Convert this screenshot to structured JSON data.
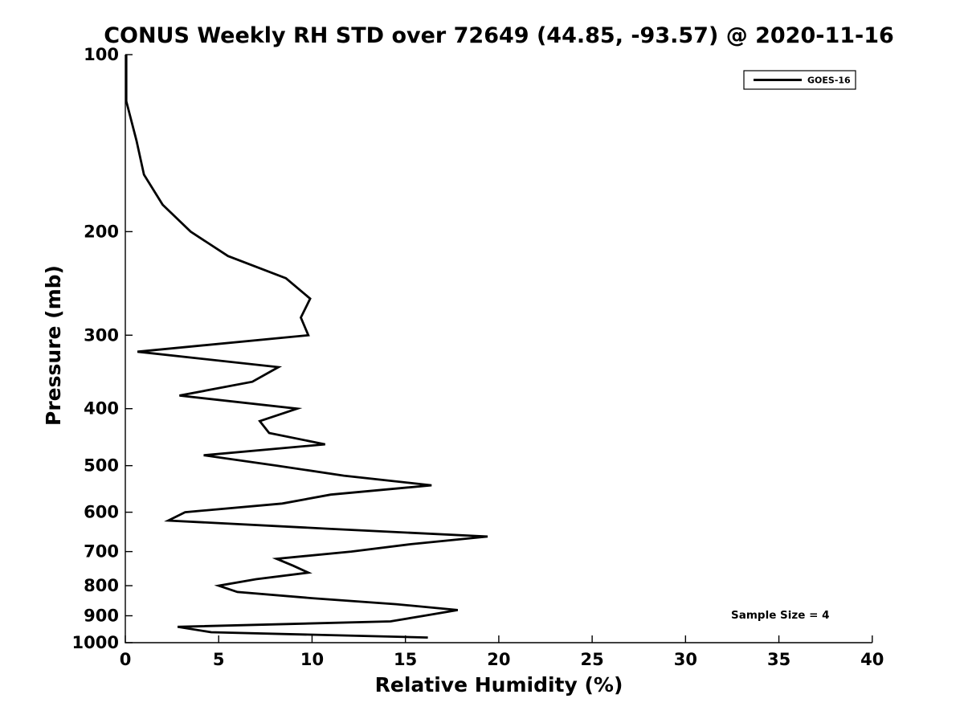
{
  "annotation": "Sample Size = 4",
  "legend": {
    "entries": [
      {
        "label": "GOES-16",
        "color": "#000000"
      }
    ]
  },
  "chart_data": {
    "type": "line",
    "title": "CONUS Weekly RH STD over 72649 (44.85, -93.57) @ 2020-11-16",
    "xlabel": "Relative Humidity (%)",
    "ylabel": "Pressure (mb)",
    "xlim": [
      0,
      40
    ],
    "ylim": [
      100,
      1000
    ],
    "y_scale": "log",
    "y_axis_reversed_downward": true,
    "grid": false,
    "legend_position": "top-right",
    "x_ticks": [
      0,
      5,
      10,
      15,
      20,
      25,
      30,
      35,
      40
    ],
    "y_ticks": [
      100,
      200,
      300,
      400,
      500,
      600,
      700,
      800,
      900,
      1000
    ],
    "line_color": "#000000",
    "background_color": "#ffffff",
    "series": [
      {
        "name": "GOES-16",
        "color": "#000000",
        "pressure_mb": [
          100,
          120,
          140,
          160,
          180,
          200,
          220,
          240,
          260,
          280,
          300,
          320,
          340,
          360,
          380,
          400,
          420,
          440,
          460,
          480,
          500,
          520,
          540,
          560,
          580,
          600,
          620,
          640,
          660,
          680,
          700,
          720,
          740,
          760,
          780,
          800,
          820,
          840,
          860,
          880,
          900,
          920,
          940,
          960,
          980
        ],
        "rh_std_percent": [
          0.05,
          0.05,
          0.6,
          1.0,
          2.0,
          3.5,
          5.5,
          8.6,
          9.9,
          9.4,
          9.8,
          0.65,
          8.2,
          6.8,
          2.9,
          9.2,
          7.2,
          7.7,
          10.7,
          4.2,
          8.1,
          11.7,
          16.4,
          11.0,
          8.4,
          3.2,
          2.3,
          10.8,
          19.4,
          15.3,
          12.1,
          8.1,
          9.0,
          9.8,
          7.0,
          5.0,
          6.0,
          10.0,
          14.5,
          17.8,
          16.0,
          14.2,
          2.8,
          4.6,
          16.2
        ]
      }
    ]
  }
}
